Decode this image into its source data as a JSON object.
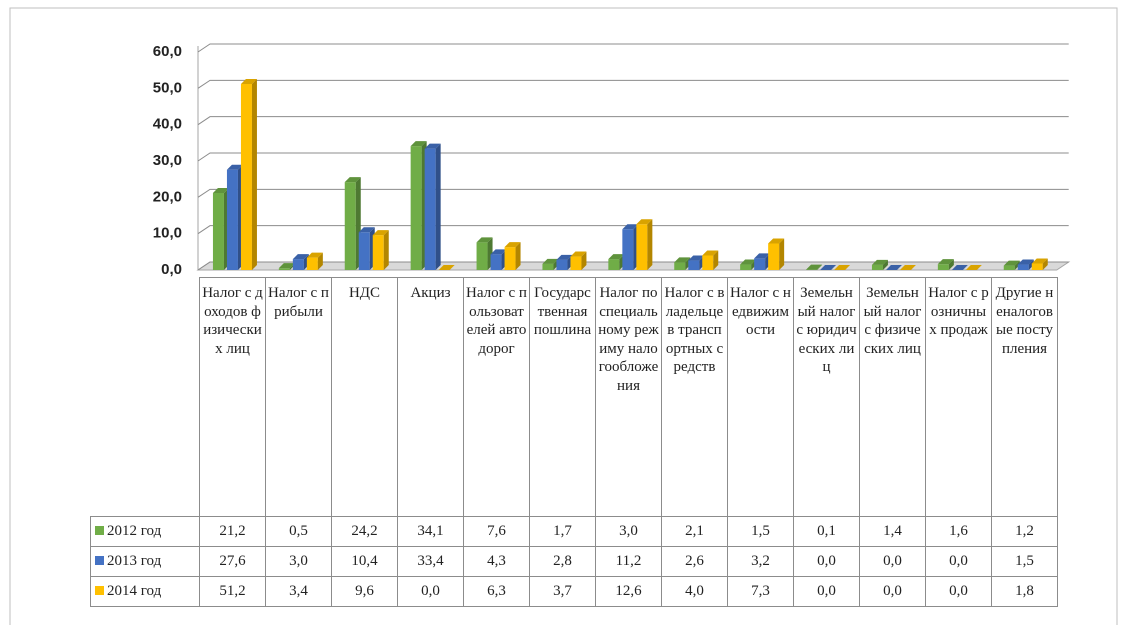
{
  "chart_data": {
    "type": "bar",
    "categories": [
      "Налог с доходов физических лиц",
      "Налог с прибыли",
      "НДС",
      "Акциз",
      "Налог с пользователей автодорог",
      "Государственная пошлина",
      "Налог по специальному режиму налогообложения",
      "Налог с владельцев транспортных средств",
      "Налог с недвижимости",
      "Земельный налог с юридических лиц",
      "Земельный налог с физических лиц",
      "Налог с розничных продаж",
      "Другие неналоговые поступления"
    ],
    "series": [
      {
        "name": "2012 год",
        "color": "#70ad47",
        "values": [
          21.2,
          0.5,
          24.2,
          34.1,
          7.6,
          1.7,
          3.0,
          2.1,
          1.5,
          0.1,
          1.4,
          1.6,
          1.2
        ],
        "value_labels": [
          "21,2",
          "0,5",
          "24,2",
          "34,1",
          "7,6",
          "1,7",
          "3,0",
          "2,1",
          "1,5",
          "0,1",
          "1,4",
          "1,6",
          "1,2"
        ]
      },
      {
        "name": "2013 год",
        "color": "#4472c4",
        "values": [
          27.6,
          3.0,
          10.4,
          33.4,
          4.3,
          2.8,
          11.2,
          2.6,
          3.2,
          0.0,
          0.0,
          0.0,
          1.5
        ],
        "value_labels": [
          "27,6",
          "3,0",
          "10,4",
          "33,4",
          "4,3",
          "2,8",
          "11,2",
          "2,6",
          "3,2",
          "0,0",
          "0,0",
          "0,0",
          "1,5"
        ]
      },
      {
        "name": "2014 год",
        "color": "#ffc000",
        "values": [
          51.2,
          3.4,
          9.6,
          0.0,
          6.3,
          3.7,
          12.6,
          4.0,
          7.3,
          0.0,
          0.0,
          0.0,
          1.8
        ],
        "value_labels": [
          "51,2",
          "3,4",
          "9,6",
          "0,0",
          "6,3",
          "3,7",
          "12,6",
          "4,0",
          "7,3",
          "0,0",
          "0,0",
          "0,0",
          "1,8"
        ]
      }
    ],
    "ylim": [
      0,
      60
    ],
    "yticks": [
      {
        "value": 0,
        "label": "0,0"
      },
      {
        "value": 10,
        "label": "10,0"
      },
      {
        "value": 20,
        "label": "20,0"
      },
      {
        "value": 30,
        "label": "30,0"
      },
      {
        "value": 40,
        "label": "40,0"
      },
      {
        "value": 50,
        "label": "50,0"
      },
      {
        "value": 60,
        "label": "60,0"
      }
    ],
    "grid": true
  }
}
